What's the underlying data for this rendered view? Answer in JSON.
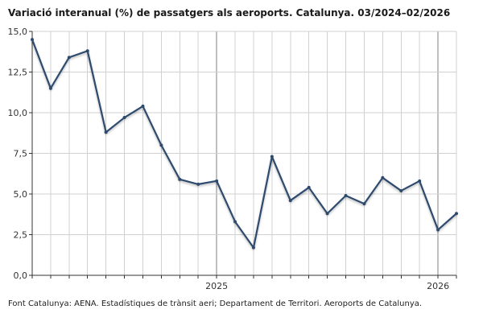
{
  "title": "Variació interanual (%) de passatgers als aeroports. Catalunya. 03/2024–02/2026",
  "source": "Font Catalunya: AENA. Estadístiques de trànsit aeri; Departament de Territori. Aeroports de Catalunya.",
  "colors": {
    "line": "#2e4b6e",
    "grid": "#d0d0d0",
    "year_divider": "#808080",
    "axis": "#333333"
  },
  "chart_data": {
    "type": "line",
    "title": "Variació interanual (%) de passatgers als aeroports. Catalunya. 03/2024–02/2026",
    "xlabel": "",
    "ylabel": "",
    "x": [
      "2024-03",
      "2024-04",
      "2024-05",
      "2024-06",
      "2024-07",
      "2024-08",
      "2024-09",
      "2024-10",
      "2024-11",
      "2024-12",
      "2025-01",
      "2025-02",
      "2025-03",
      "2025-04",
      "2025-05",
      "2025-06",
      "2025-07",
      "2025-08",
      "2025-09",
      "2025-10",
      "2025-11",
      "2025-12",
      "2026-01",
      "2026-02"
    ],
    "x_tick_labels": [
      {
        "x": "2025-01",
        "label": "2025"
      },
      {
        "x": "2026-01",
        "label": "2026"
      }
    ],
    "series": [
      {
        "values": [
          14.5,
          11.5,
          13.4,
          13.8,
          8.8,
          9.7,
          10.4,
          8.0,
          5.9,
          5.6,
          5.8,
          3.3,
          1.7,
          7.3,
          4.6,
          5.4,
          3.8,
          4.9,
          4.4,
          6.0,
          5.2,
          5.8,
          2.8,
          3.8
        ]
      }
    ],
    "ylim": [
      0,
      15
    ],
    "y_ticks": [
      0,
      2.5,
      5,
      7.5,
      10,
      12.5,
      15
    ],
    "y_tick_labels": [
      "0,0",
      "2,5",
      "5,0",
      "7,5",
      "10,0",
      "12,5",
      "15,0"
    ],
    "grid": true,
    "legend": "none"
  }
}
